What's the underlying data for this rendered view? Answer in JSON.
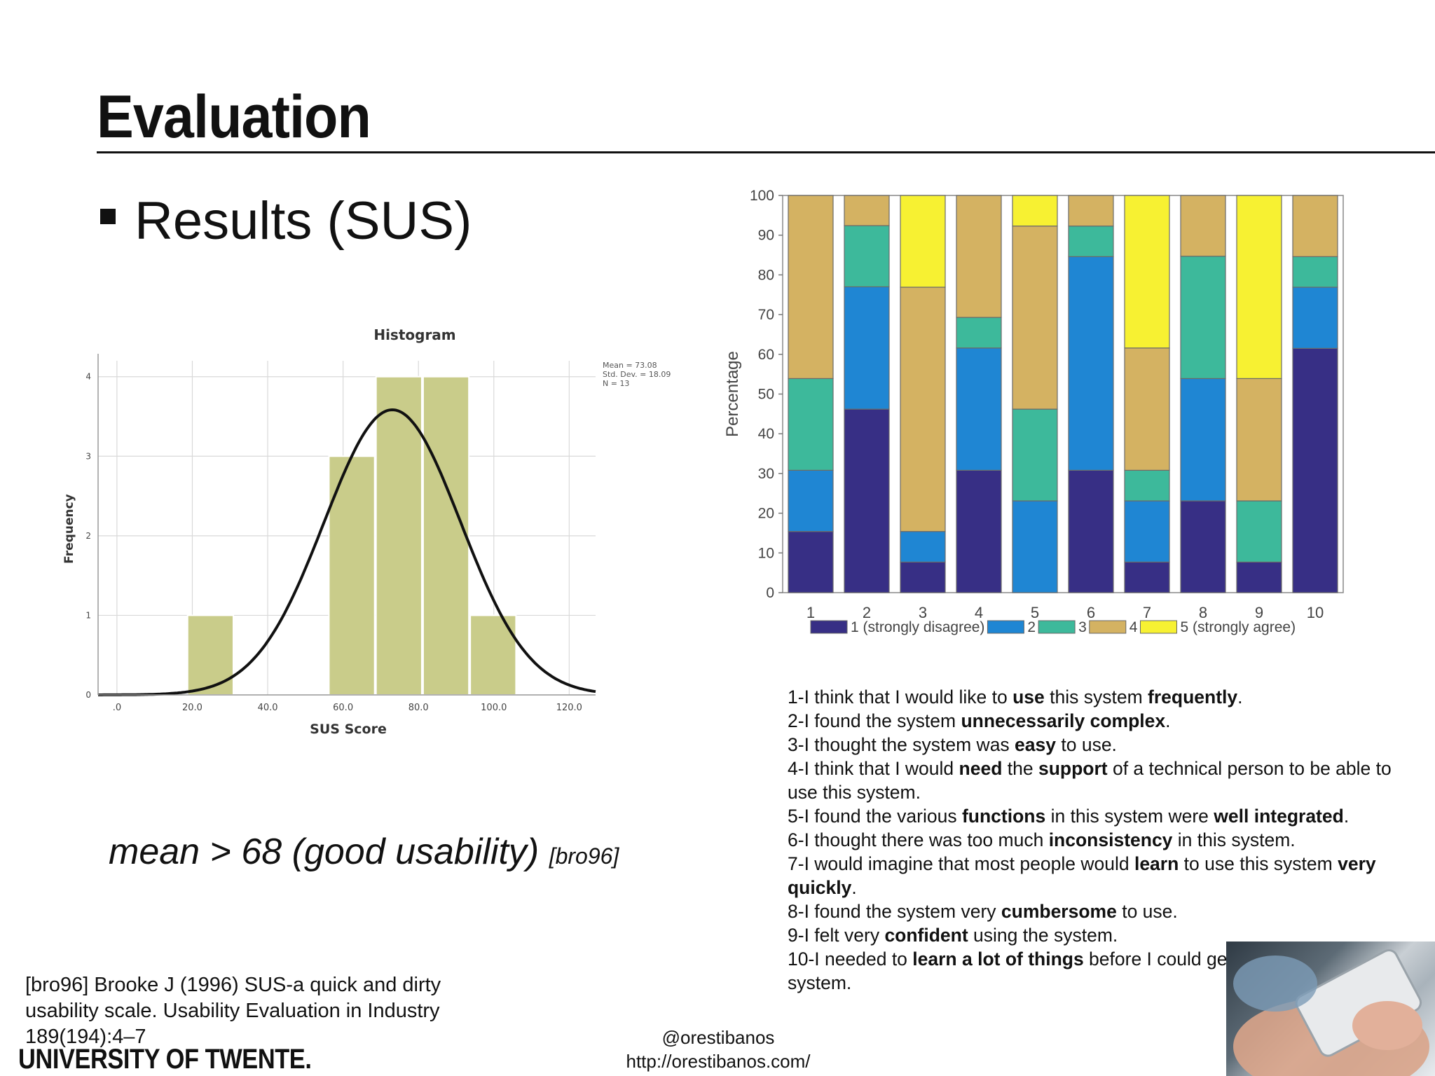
{
  "slide": {
    "title": "Evaluation",
    "subtitle": "Results (SUS)",
    "mean_note": "mean > 68 (good usability)",
    "mean_cite": "[bro96]"
  },
  "reference": "[bro96] Brooke J (1996) SUS-a quick and dirty usability scale. Usability Evaluation in Industry 189(194):4–7",
  "logo_text": "UNIVERSITY OF TWENTE.",
  "footer": {
    "handle": "@orestibanos",
    "url": "http://orestibanos.com/"
  },
  "questions": [
    [
      {
        "t": "1-I think that I would like to "
      },
      {
        "t": "use",
        "b": true
      },
      {
        "t": " this system "
      },
      {
        "t": "frequently",
        "b": true
      },
      {
        "t": "."
      }
    ],
    [
      {
        "t": "2-I found the system "
      },
      {
        "t": "unnecessarily complex",
        "b": true
      },
      {
        "t": "."
      }
    ],
    [
      {
        "t": "3-I thought the system was "
      },
      {
        "t": "easy",
        "b": true
      },
      {
        "t": " to use."
      }
    ],
    [
      {
        "t": "4-I think that I would "
      },
      {
        "t": "need",
        "b": true
      },
      {
        "t": " the "
      },
      {
        "t": "support",
        "b": true
      },
      {
        "t": " of a technical person to be able to use this system."
      }
    ],
    [
      {
        "t": "5-I found the various "
      },
      {
        "t": "functions",
        "b": true
      },
      {
        "t": " in this system were "
      },
      {
        "t": "well integrated",
        "b": true
      },
      {
        "t": "."
      }
    ],
    [
      {
        "t": "6-I thought there was too much "
      },
      {
        "t": "inconsistency",
        "b": true
      },
      {
        "t": " in this system."
      }
    ],
    [
      {
        "t": "7-I would imagine that most people would "
      },
      {
        "t": "learn",
        "b": true
      },
      {
        "t": " to use this system "
      },
      {
        "t": "very quickly",
        "b": true
      },
      {
        "t": "."
      }
    ],
    [
      {
        "t": "8-I found the system very "
      },
      {
        "t": "cumbersome",
        "b": true
      },
      {
        "t": " to use."
      }
    ],
    [
      {
        "t": "9-I felt very "
      },
      {
        "t": "confident",
        "b": true
      },
      {
        "t": " using the system."
      }
    ],
    [
      {
        "t": "10-I needed to "
      },
      {
        "t": "learn a lot of things",
        "b": true
      },
      {
        "t": " before I could get going with this system."
      }
    ]
  ],
  "chart_data": [
    {
      "type": "bar",
      "title": "Histogram",
      "xlabel": "SUS Score",
      "ylabel": "Frequency",
      "x_ticks": [
        ".0",
        "20.0",
        "40.0",
        "60.0",
        "80.0",
        "100.0",
        "120.0"
      ],
      "y_ticks": [
        "0",
        "1",
        "2",
        "3",
        "4"
      ],
      "xlim": [
        -5,
        127
      ],
      "ylim": [
        0,
        4.2
      ],
      "bin_width": 12.5,
      "bins": [
        {
          "start": 18.75,
          "count": 1
        },
        {
          "start": 56.25,
          "count": 3
        },
        {
          "start": 68.75,
          "count": 4
        },
        {
          "start": 81.25,
          "count": 4
        },
        {
          "start": 93.75,
          "count": 1
        }
      ],
      "normal_curve": {
        "mean": 73.08,
        "std": 18.09,
        "n": 13
      },
      "stats_text": [
        "Mean = 73.08",
        "Std. Dev. = 18.09",
        "N = 13"
      ],
      "bar_color": "#c9cc8a",
      "curve_color": "#111111",
      "grid": true
    },
    {
      "type": "bar",
      "stacked": true,
      "ylabel": "Percentage",
      "categories": [
        "1",
        "2",
        "3",
        "4",
        "5",
        "6",
        "7",
        "8",
        "9",
        "10"
      ],
      "ylim": [
        0,
        100
      ],
      "y_ticks": [
        0,
        10,
        20,
        30,
        40,
        50,
        60,
        70,
        80,
        90,
        100
      ],
      "legend_position": "bottom",
      "series": [
        {
          "name": "1 (strongly disagree)",
          "color": "#372f85",
          "values": [
            15.4,
            46.2,
            7.7,
            30.8,
            0,
            30.8,
            7.7,
            23.1,
            7.7,
            61.5
          ]
        },
        {
          "name": "2",
          "color": "#1f86d3",
          "values": [
            15.4,
            30.8,
            7.7,
            30.8,
            23.1,
            53.8,
            15.4,
            30.8,
            0,
            15.4
          ]
        },
        {
          "name": "3",
          "color": "#3db99b",
          "values": [
            23.1,
            15.4,
            0,
            7.7,
            23.1,
            7.7,
            7.7,
            30.8,
            15.4,
            7.7
          ]
        },
        {
          "name": "4",
          "color": "#d4b262",
          "values": [
            46.1,
            7.6,
            61.5,
            30.7,
            46.1,
            7.7,
            30.8,
            15.3,
            30.8,
            15.4
          ]
        },
        {
          "name": "5 (strongly agree)",
          "color": "#f7f132",
          "values": [
            0,
            0,
            23.1,
            0,
            7.7,
            0,
            38.4,
            0,
            46.1,
            0
          ]
        }
      ]
    }
  ]
}
